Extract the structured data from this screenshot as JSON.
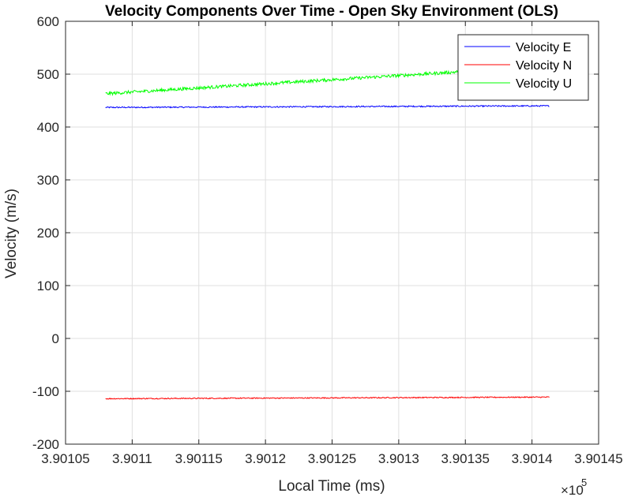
{
  "chart_data": {
    "type": "line",
    "title": "Velocity Components Over Time - Open Sky Environment (OLS)",
    "xlabel": "Local Time (ms)",
    "ylabel": "Velocity (m/s)",
    "x_exponent_label": "×10",
    "x_exponent_power": "5",
    "xlim": [
      3.90105,
      3.90145
    ],
    "ylim": [
      -200,
      600
    ],
    "xticks": [
      3.90105,
      3.9011,
      3.90115,
      3.9012,
      3.90125,
      3.9013,
      3.90135,
      3.9014,
      3.90145
    ],
    "xtick_labels": [
      "3.90105",
      "3.9011",
      "3.90115",
      "3.9012",
      "3.90125",
      "3.9013",
      "3.90135",
      "3.9014",
      "3.90145"
    ],
    "yticks": [
      -200,
      -100,
      0,
      100,
      200,
      300,
      400,
      500,
      600
    ],
    "ytick_labels": [
      "-200",
      "-100",
      "0",
      "100",
      "200",
      "300",
      "400",
      "500",
      "600"
    ],
    "grid": true,
    "legend_position": "top-right",
    "series": [
      {
        "name": "Velocity E",
        "color": "#0000ff",
        "x_start": 3.90108,
        "x_end": 3.901413,
        "y_start": 437,
        "y_end": 440,
        "noise": 1.2
      },
      {
        "name": "Velocity N",
        "color": "#ff0000",
        "x_start": 3.90108,
        "x_end": 3.901413,
        "y_start": -114,
        "y_end": -111,
        "noise": 1.0
      },
      {
        "name": "Velocity U",
        "color": "#00ff00",
        "x_start": 3.90108,
        "x_end": 3.901413,
        "y_start": 463,
        "y_end": 515,
        "noise": 3.0
      }
    ]
  }
}
